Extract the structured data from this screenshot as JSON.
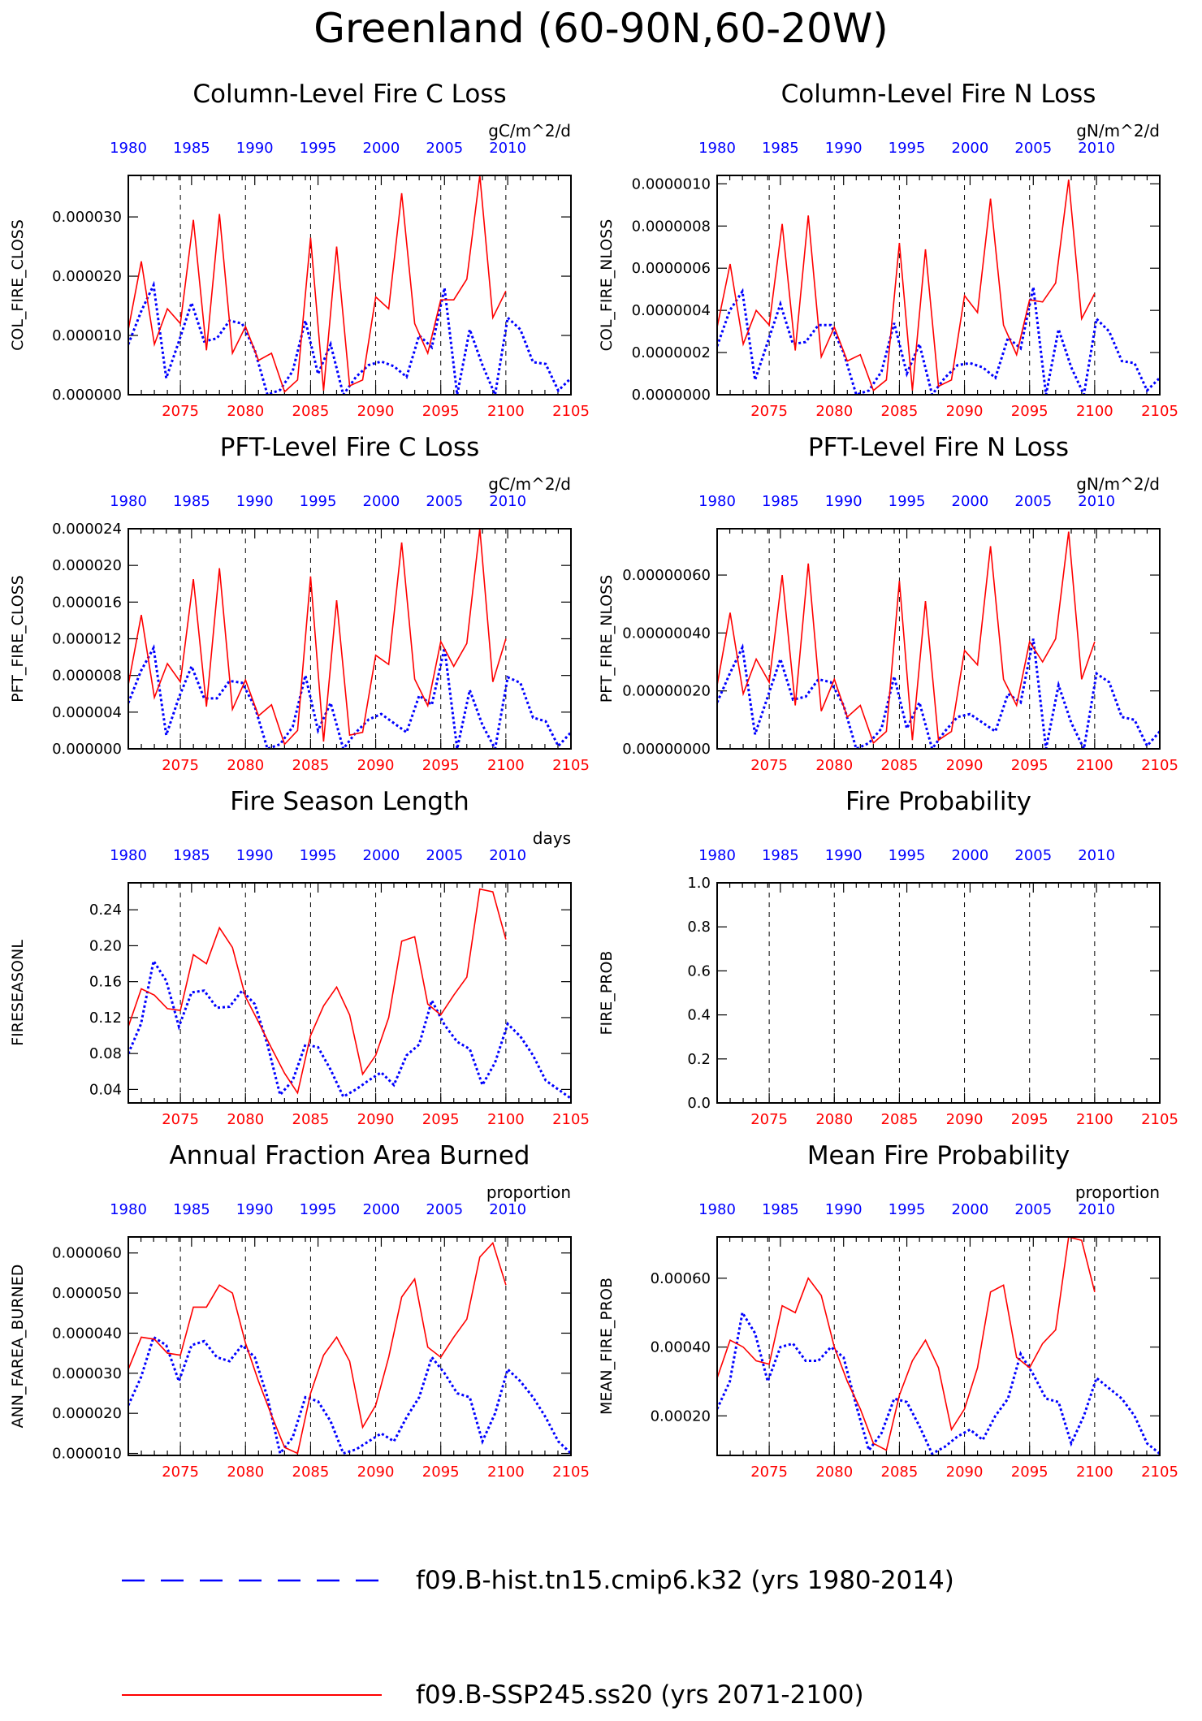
{
  "title": "Greenland (60-90N,60-20W)",
  "colors": {
    "hist": "#0000ff",
    "ssp": "#ff0000",
    "frame": "#000000"
  },
  "legend": [
    {
      "label": "f09.B-hist.tn15.cmip6.k32 (yrs 1980-2014)",
      "color": "#0000ff",
      "style": "dashed"
    },
    {
      "label": "f09.B-SSP245.ss20 (yrs 2071-2100)",
      "color": "#ff0000",
      "style": "solid"
    }
  ],
  "chart_data": [
    {
      "type": "line",
      "title": "Column-Level Fire C Loss",
      "units": "gC/m^2/d",
      "ylabel": "COL_FIRE_CLOSS",
      "ylim": [
        0,
        3.7e-05
      ],
      "yticks": [
        0,
        1e-05,
        2e-05,
        3e-05
      ],
      "yticklabels": [
        "0.000000",
        "0.000010",
        "0.000020",
        "0.000030"
      ],
      "top_ticks": [
        "1980",
        "1985",
        "1990",
        "1995",
        "2000",
        "2005",
        "2010"
      ],
      "bottom_ticks": [
        "2075",
        "2080",
        "2085",
        "2090",
        "2095",
        "2100",
        "2105"
      ],
      "series": [
        {
          "values": [
            8.5e-06,
            1.4e-05,
            1.85e-05,
            2.8e-06,
            9e-06,
            1.55e-05,
            9e-06,
            9.5e-06,
            1.25e-05,
            1.2e-05,
            7.5e-06,
            0,
            8e-07,
            4e-06,
            1.25e-05,
            3.5e-06,
            8.5e-06,
            0,
            3e-06,
            5e-06,
            5.6e-06,
            4.8e-06,
            3e-06,
            1e-05,
            8e-06,
            1.8e-05,
            0,
            1.1e-05,
            5e-06,
            0,
            1.3e-05,
            1.1e-05,
            5.5e-06,
            5.2e-06,
            7e-07,
            2.8e-06
          ]
        },
        {
          "values": [
            1.1e-05,
            2.25e-05,
            8.5e-06,
            1.45e-05,
            1.2e-05,
            2.95e-05,
            7.5e-06,
            3.05e-05,
            7e-06,
            1.15e-05,
            5.8e-06,
            7e-06,
            5e-07,
            2.5e-06,
            2.65e-05,
            7e-07,
            2.5e-05,
            1.5e-06,
            2.5e-06,
            1.65e-05,
            1.45e-05,
            3.4e-05,
            1.2e-05,
            7e-06,
            1.6e-05,
            1.6e-05,
            1.95e-05,
            3.7e-05,
            1.3e-05,
            1.75e-05
          ]
        }
      ]
    },
    {
      "type": "line",
      "title": "Column-Level Fire N Loss",
      "units": "gN/m^2/d",
      "ylabel": "COL_FIRE_NLOSS",
      "ylim": [
        0,
        1.04e-06
      ],
      "yticks": [
        0,
        2e-07,
        4e-07,
        6e-07,
        8e-07,
        1e-06
      ],
      "yticklabels": [
        "0.0000000",
        "0.0000002",
        "0.0000004",
        "0.0000006",
        "0.0000008",
        "0.0000010"
      ],
      "top_ticks": [
        "1980",
        "1985",
        "1990",
        "1995",
        "2000",
        "2005",
        "2010"
      ],
      "bottom_ticks": [
        "2075",
        "2080",
        "2085",
        "2090",
        "2095",
        "2100",
        "2105"
      ],
      "series": [
        {
          "values": [
            2.3e-07,
            4e-07,
            4.9e-07,
            7e-08,
            2.5e-07,
            4.3e-07,
            2.4e-07,
            2.5e-07,
            3.3e-07,
            3.3e-07,
            2e-07,
            0,
            2e-08,
            1.1e-07,
            3.4e-07,
            1e-07,
            2.4e-07,
            0,
            8e-08,
            1.4e-07,
            1.5e-07,
            1.3e-07,
            8e-08,
            2.7e-07,
            2.2e-07,
            5.1e-07,
            0,
            3.1e-07,
            1.3e-07,
            0,
            3.6e-07,
            3e-07,
            1.6e-07,
            1.5e-07,
            2e-08,
            8e-08
          ]
        },
        {
          "values": [
            3.2e-07,
            6.2e-07,
            2.4e-07,
            4e-07,
            3.3e-07,
            8.1e-07,
            2.1e-07,
            8.5e-07,
            1.8e-07,
            3.2e-07,
            1.6e-07,
            1.9e-07,
            2e-08,
            7e-08,
            7.2e-07,
            2e-08,
            6.9e-07,
            4e-08,
            7e-08,
            4.7e-07,
            3.9e-07,
            9.3e-07,
            3.3e-07,
            1.9e-07,
            4.5e-07,
            4.4e-07,
            5.3e-07,
            1.02e-06,
            3.6e-07,
            4.8e-07
          ]
        }
      ]
    },
    {
      "type": "line",
      "title": "PFT-Level Fire C Loss",
      "units": "gC/m^2/d",
      "ylabel": "PFT_FIRE_CLOSS",
      "ylim": [
        0,
        2.4e-05
      ],
      "yticks": [
        0,
        4e-06,
        8e-06,
        1.2e-05,
        1.6e-05,
        2e-05,
        2.4e-05
      ],
      "yticklabels": [
        "0.000000",
        "0.000004",
        "0.000008",
        "0.000012",
        "0.000016",
        "0.000020",
        "0.000024"
      ],
      "top_ticks": [
        "1980",
        "1985",
        "1990",
        "1995",
        "2000",
        "2005",
        "2010"
      ],
      "bottom_ticks": [
        "2075",
        "2080",
        "2085",
        "2090",
        "2095",
        "2100",
        "2105"
      ],
      "series": [
        {
          "values": [
            5e-06,
            8.5e-06,
            1.1e-05,
            1.5e-06,
            5.6e-06,
            9e-06,
            5.5e-06,
            5.5e-06,
            7.4e-06,
            7.2e-06,
            4.6e-06,
            0,
            5e-07,
            2.4e-06,
            8e-06,
            2e-06,
            5e-06,
            0,
            1.8e-06,
            3.2e-06,
            3.8e-06,
            2.8e-06,
            1.8e-06,
            5.8e-06,
            4.8e-06,
            1.1e-05,
            0,
            6.4e-06,
            2.6e-06,
            0,
            7.8e-06,
            7.2e-06,
            3.4e-06,
            3e-06,
            3e-07,
            1.8e-06
          ]
        },
        {
          "values": [
            7e-06,
            1.46e-05,
            5.6e-06,
            9.3e-06,
            7.3e-06,
            1.85e-05,
            4.6e-06,
            1.97e-05,
            4.3e-06,
            7.5e-06,
            3.6e-06,
            4.8e-06,
            5e-07,
            2e-06,
            1.88e-05,
            8e-07,
            1.62e-05,
            1.5e-06,
            1.8e-06,
            1.02e-05,
            9.2e-06,
            2.25e-05,
            7.6e-06,
            4.7e-06,
            1.17e-05,
            9e-06,
            1.15e-05,
            2.4e-05,
            7.3e-06,
            1.2e-05
          ]
        }
      ]
    },
    {
      "type": "line",
      "title": "PFT-Level Fire N Loss",
      "units": "gN/m^2/d",
      "ylabel": "PFT_FIRE_NLOSS",
      "ylim": [
        0,
        7.6e-07
      ],
      "yticks": [
        0,
        2e-07,
        4e-07,
        6e-07
      ],
      "yticklabels": [
        "0.00000000",
        "0.00000020",
        "0.00000040",
        "0.00000060"
      ],
      "top_ticks": [
        "1980",
        "1985",
        "1990",
        "1995",
        "2000",
        "2005",
        "2010"
      ],
      "bottom_ticks": [
        "2075",
        "2080",
        "2085",
        "2090",
        "2095",
        "2100",
        "2105"
      ],
      "series": [
        {
          "values": [
            1.6e-07,
            2.6e-07,
            3.5e-07,
            5e-08,
            1.8e-07,
            3.1e-07,
            1.7e-07,
            1.8e-07,
            2.4e-07,
            2.3e-07,
            1.5e-07,
            0,
            2e-08,
            7e-08,
            2.5e-07,
            7e-08,
            1.6e-07,
            0,
            6e-08,
            1.1e-07,
            1.2e-07,
            9e-08,
            6e-08,
            1.9e-07,
            1.6e-07,
            3.8e-07,
            0,
            2.2e-07,
            9e-08,
            0,
            2.6e-07,
            2.3e-07,
            1.1e-07,
            1e-07,
            1e-08,
            6e-08
          ]
        },
        {
          "values": [
            2.2e-07,
            4.7e-07,
            1.9e-07,
            3.1e-07,
            2.3e-07,
            6e-07,
            1.5e-07,
            6.4e-07,
            1.3e-07,
            2.4e-07,
            1.1e-07,
            1.5e-07,
            2e-08,
            6e-08,
            5.8e-07,
            3e-08,
            5.1e-07,
            3e-08,
            6e-08,
            3.4e-07,
            2.9e-07,
            7e-07,
            2.4e-07,
            1.5e-07,
            3.7e-07,
            3e-07,
            3.8e-07,
            7.5e-07,
            2.4e-07,
            3.7e-07
          ]
        }
      ]
    },
    {
      "type": "line",
      "title": "Fire Season Length",
      "units": "days",
      "ylabel": "FIRESEASONL",
      "ylim": [
        0.025,
        0.27
      ],
      "yticks": [
        0.04,
        0.08,
        0.12,
        0.16,
        0.2,
        0.24
      ],
      "yticklabels": [
        "0.04",
        "0.08",
        "0.12",
        "0.16",
        "0.20",
        "0.24"
      ],
      "top_ticks": [
        "1980",
        "1985",
        "1990",
        "1995",
        "2000",
        "2005",
        "2010"
      ],
      "bottom_ticks": [
        "2075",
        "2080",
        "2085",
        "2090",
        "2095",
        "2100",
        "2105"
      ],
      "series": [
        {
          "values": [
            0.08,
            0.113,
            0.183,
            0.161,
            0.11,
            0.148,
            0.15,
            0.131,
            0.132,
            0.15,
            0.135,
            0.09,
            0.034,
            0.05,
            0.09,
            0.087,
            0.062,
            0.032,
            0.04,
            0.05,
            0.059,
            0.045,
            0.078,
            0.09,
            0.139,
            0.112,
            0.093,
            0.085,
            0.045,
            0.07,
            0.113,
            0.099,
            0.078,
            0.05,
            0.04,
            0.03
          ]
        },
        {
          "values": [
            0.11,
            0.152,
            0.145,
            0.13,
            0.128,
            0.19,
            0.18,
            0.22,
            0.198,
            0.143,
            0.115,
            0.086,
            0.058,
            0.036,
            0.1,
            0.133,
            0.154,
            0.123,
            0.057,
            0.078,
            0.12,
            0.205,
            0.21,
            0.135,
            0.123,
            0.145,
            0.165,
            0.263,
            0.26,
            0.207
          ]
        }
      ]
    },
    {
      "type": "line",
      "title": "Fire Probability",
      "units": "",
      "ylabel": "FIRE_PROB",
      "ylim": [
        0,
        1
      ],
      "yticks": [
        0,
        0.2,
        0.4,
        0.6,
        0.8,
        1
      ],
      "yticklabels": [
        "0.0",
        "0.2",
        "0.4",
        "0.6",
        "0.8",
        "1.0"
      ],
      "top_ticks": [
        "1980",
        "1985",
        "1990",
        "1995",
        "2000",
        "2005",
        "2010"
      ],
      "bottom_ticks": [
        "2075",
        "2080",
        "2085",
        "2090",
        "2095",
        "2100",
        "2105"
      ],
      "series": [
        {
          "values": []
        },
        {
          "values": []
        }
      ]
    },
    {
      "type": "line",
      "title": "Annual Fraction Area Burned",
      "units": "proportion",
      "ylabel": "ANN_FAREA_BURNED",
      "ylim": [
        9.5e-06,
        6.4e-05
      ],
      "yticks": [
        1e-05,
        2e-05,
        3e-05,
        4e-05,
        5e-05,
        6e-05
      ],
      "yticklabels": [
        "0.000010",
        "0.000020",
        "0.000030",
        "0.000040",
        "0.000050",
        "0.000060"
      ],
      "top_ticks": [
        "1980",
        "1985",
        "1990",
        "1995",
        "2000",
        "2005",
        "2010"
      ],
      "bottom_ticks": [
        "2075",
        "2080",
        "2085",
        "2090",
        "2095",
        "2100",
        "2105"
      ],
      "series": [
        {
          "values": [
            2.2e-05,
            2.9e-05,
            3.9e-05,
            3.7e-05,
            2.8e-05,
            3.7e-05,
            3.8e-05,
            3.4e-05,
            3.3e-05,
            3.7e-05,
            3.4e-05,
            2.4e-05,
            1e-05,
            1.4e-05,
            2.4e-05,
            2.3e-05,
            1.8e-05,
            1e-05,
            1.1e-05,
            1.3e-05,
            1.5e-05,
            1.3e-05,
            1.9e-05,
            2.4e-05,
            3.4e-05,
            3e-05,
            2.5e-05,
            2.4e-05,
            1.3e-05,
            2e-05,
            3.1e-05,
            2.8e-05,
            2.4e-05,
            1.9e-05,
            1.3e-05,
            1e-05
          ]
        },
        {
          "values": [
            3.1e-05,
            3.9e-05,
            3.85e-05,
            3.5e-05,
            3.45e-05,
            4.65e-05,
            4.65e-05,
            5.2e-05,
            5e-05,
            3.75e-05,
            2.8e-05,
            1.95e-05,
            1.15e-05,
            1e-05,
            2.5e-05,
            3.45e-05,
            3.9e-05,
            3.3e-05,
            1.65e-05,
            2.2e-05,
            3.4e-05,
            4.9e-05,
            5.35e-05,
            3.65e-05,
            3.4e-05,
            3.9e-05,
            4.35e-05,
            5.9e-05,
            6.25e-05,
            5.2e-05
          ]
        }
      ]
    },
    {
      "type": "line",
      "title": "Mean Fire Probability",
      "units": "proportion",
      "ylabel": "MEAN_FIRE_PROB",
      "ylim": [
        8.5e-05,
        0.00072
      ],
      "yticks": [
        0.0002,
        0.0004,
        0.0006
      ],
      "yticklabels": [
        "0.00020",
        "0.00040",
        "0.00060"
      ],
      "top_ticks": [
        "1980",
        "1985",
        "1990",
        "1995",
        "2000",
        "2005",
        "2010"
      ],
      "bottom_ticks": [
        "2075",
        "2080",
        "2085",
        "2090",
        "2095",
        "2100",
        "2105"
      ],
      "series": [
        {
          "values": [
            0.00022,
            0.0003,
            0.0005,
            0.00044,
            0.0003,
            0.0004,
            0.00041,
            0.00036,
            0.00036,
            0.0004,
            0.00037,
            0.00023,
            0.0001,
            0.00015,
            0.00025,
            0.00024,
            0.00017,
            9e-05,
            0.00011,
            0.00014,
            0.00016,
            0.00013,
            0.0002,
            0.00025,
            0.00038,
            0.00032,
            0.00025,
            0.00024,
            0.00012,
            0.0002,
            0.00031,
            0.00028,
            0.00025,
            0.0002,
            0.00012,
            9e-05
          ]
        },
        {
          "values": [
            0.00031,
            0.00042,
            0.0004,
            0.00036,
            0.00035,
            0.00052,
            0.0005,
            0.0006,
            0.00055,
            0.0004,
            0.0003,
            0.00022,
            0.00012,
            0.0001,
            0.00026,
            0.00036,
            0.00042,
            0.00034,
            0.00016,
            0.00022,
            0.00034,
            0.00056,
            0.00058,
            0.00037,
            0.00034,
            0.00041,
            0.00045,
            0.00072,
            0.00071,
            0.00056
          ]
        }
      ]
    }
  ]
}
